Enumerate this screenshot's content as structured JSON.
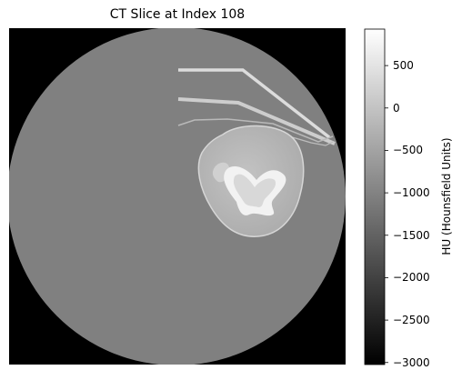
{
  "title": "CT Slice at Index 108",
  "colorbar": {
    "label": "HU (Hounsfield Units)",
    "colormap": "gray",
    "range": [
      -3024,
      930
    ],
    "ticks": [
      "500",
      "0",
      "−500",
      "−1000",
      "−1500",
      "−2000",
      "−2500",
      "−3000"
    ]
  }
}
